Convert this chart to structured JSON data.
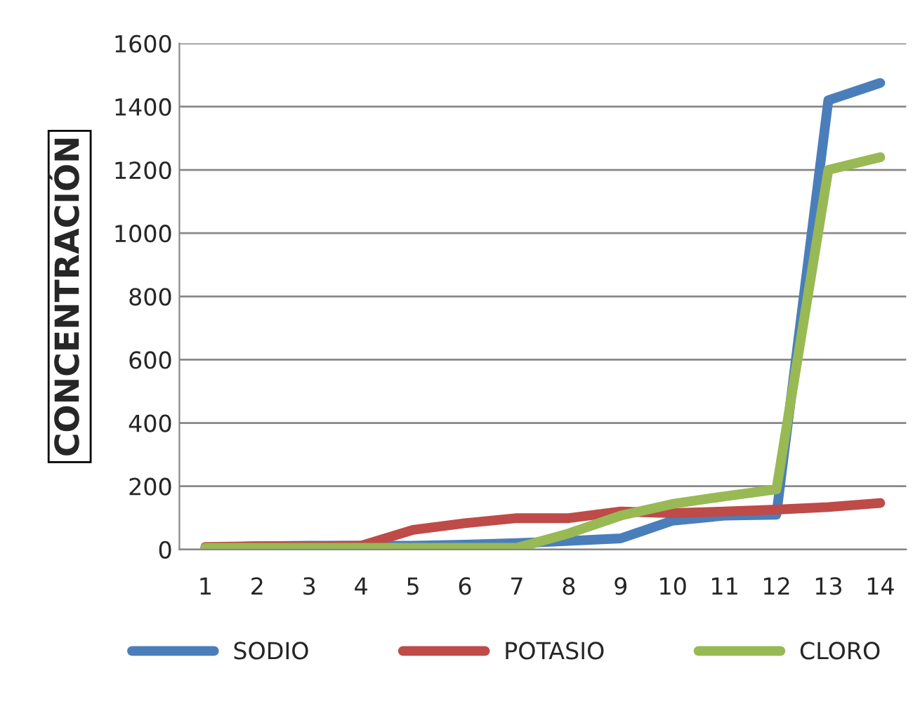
{
  "chart_data": {
    "type": "line",
    "ylabel": "CONCENTRACIÓN",
    "categories": [
      "1",
      "2",
      "3",
      "4",
      "5",
      "6",
      "7",
      "8",
      "9",
      "10",
      "11",
      "12",
      "13",
      "14"
    ],
    "series": [
      {
        "name": "SODIO",
        "color": "#4a7ebb",
        "values": [
          5,
          10,
          12,
          12,
          12,
          15,
          20,
          27,
          35,
          91,
          107,
          110,
          1420,
          1475
        ]
      },
      {
        "name": "POTASIO",
        "color": "#be4b48",
        "values": [
          8,
          10,
          10,
          12,
          62,
          83,
          99,
          99,
          120,
          115,
          120,
          126,
          134,
          147
        ]
      },
      {
        "name": "CLORO",
        "color": "#98b954",
        "values": [
          5,
          5,
          5,
          5,
          5,
          5,
          5,
          51,
          107,
          144,
          168,
          190,
          1200,
          1240
        ]
      }
    ],
    "ylim": [
      0,
      1600
    ],
    "yticks": [
      0,
      200,
      400,
      600,
      800,
      1000,
      1200,
      1400,
      1600
    ],
    "grid": "y",
    "legend": "bottom",
    "marker": "none",
    "line_style": "solid"
  }
}
